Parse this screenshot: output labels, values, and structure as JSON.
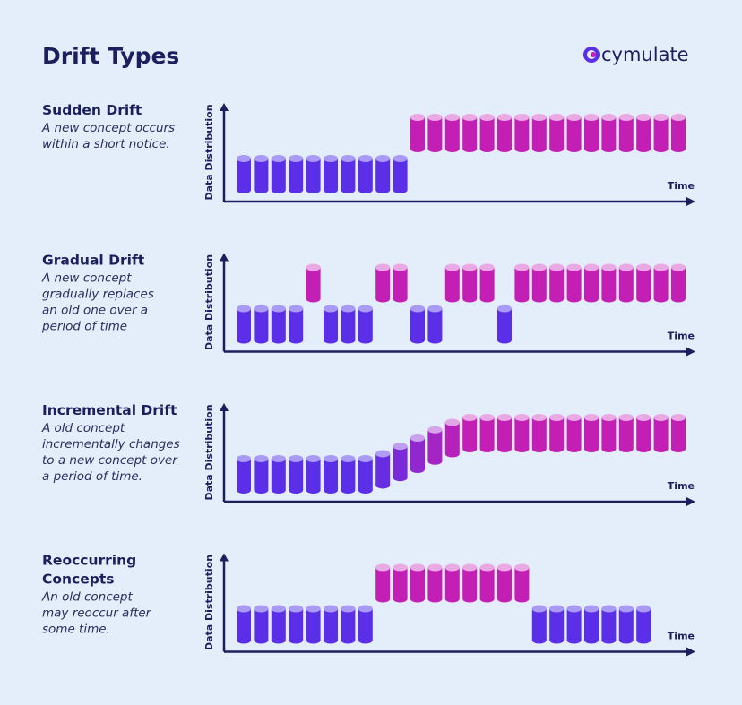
{
  "header": {
    "title": "Drift Types",
    "logo": "cymulate"
  },
  "panels": [
    {
      "heading": [
        "Sudden Drift"
      ],
      "description": [
        "A new concept occurs",
        "within a short notice."
      ],
      "y_axis": "Data  Distribution",
      "x_axis": "Time"
    },
    {
      "heading": [
        "Gradual Drift"
      ],
      "description": [
        "A new concept",
        "gradually replaces",
        "an old one over a",
        "period of time"
      ],
      "y_axis": "Data  Distribution",
      "x_axis": "Time"
    },
    {
      "heading": [
        "Incremental  Drift"
      ],
      "description": [
        "A old concept",
        "incrementally changes",
        "to a new concept over",
        "a period of time."
      ],
      "y_axis": "Data  Distribution",
      "x_axis": "Time"
    },
    {
      "heading": [
        "Reoccurring",
        "Concepts"
      ],
      "description": [
        "An old concept",
        "may reoccur after",
        "some time."
      ],
      "y_axis": "Data  Distribution",
      "x_axis": "Time"
    }
  ]
}
